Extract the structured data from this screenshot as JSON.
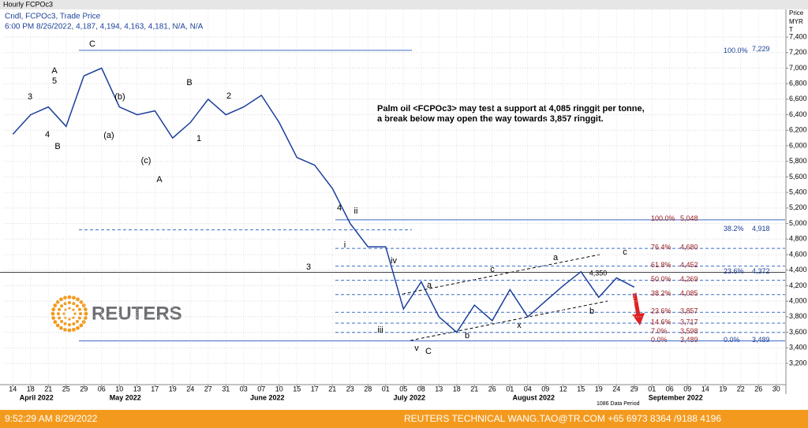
{
  "window_title": "Hourly FCPOc3",
  "chart_data": {
    "type": "line",
    "legend_lines": [
      "Cndl, FCPOc3, Trade Price",
      "6:00 PM 8/26/2022, 4,187, 4,194, 4,163, 4,181, N/A, N/A"
    ],
    "axis_unit_labels": [
      "Price",
      "MYR",
      "T"
    ],
    "categories": [
      "14",
      "18",
      "21",
      "25",
      "29",
      "06",
      "10",
      "13",
      "17",
      "19",
      "24",
      "27",
      "31",
      "03",
      "07",
      "10",
      "15",
      "17",
      "21",
      "23",
      "28",
      "01",
      "05",
      "08",
      "13",
      "18",
      "21",
      "26",
      "01",
      "04",
      "09",
      "12",
      "15",
      "19",
      "24",
      "29",
      "01",
      "06",
      "09",
      "14",
      "19",
      "22",
      "26",
      "30"
    ],
    "months": [
      "April 2022",
      "May 2022",
      "June 2022",
      "July 2022",
      "August 2022",
      "September 2022"
    ],
    "series": [
      {
        "name": "FCPOc3",
        "color": "#1a3f9a",
        "values": [
          6150,
          6400,
          6500,
          6250,
          6900,
          7000,
          6500,
          6400,
          6450,
          6100,
          6300,
          6600,
          6400,
          6500,
          6650,
          6300,
          5850,
          5750,
          5450,
          5000,
          4700,
          4700,
          3900,
          4250,
          3800,
          3600,
          3950,
          3750,
          4150,
          3800,
          4000,
          4200,
          4380,
          4050,
          4300,
          4181,
          null,
          null,
          null,
          null,
          null,
          null,
          null,
          null
        ]
      }
    ],
    "ylim": [
      3200,
      7400
    ],
    "yticks": [
      {
        "value": 3200,
        "label": "3,200"
      },
      {
        "value": 3400,
        "label": "3,400"
      },
      {
        "value": 3600,
        "label": "3,600"
      },
      {
        "value": 3800,
        "label": "3,800"
      },
      {
        "value": 4000,
        "label": "4,000"
      },
      {
        "value": 4200,
        "label": "4,200"
      },
      {
        "value": 4400,
        "label": "4,400"
      },
      {
        "value": 4600,
        "label": "4,600"
      },
      {
        "value": 4800,
        "label": "4,800"
      },
      {
        "value": 5000,
        "label": "5,000"
      },
      {
        "value": 5200,
        "label": "5,200"
      },
      {
        "value": 5400,
        "label": "5,400"
      },
      {
        "value": 5600,
        "label": "5,600"
      },
      {
        "value": 5800,
        "label": "5,800"
      },
      {
        "value": 6000,
        "label": "6,000"
      },
      {
        "value": 6200,
        "label": "6,200"
      },
      {
        "value": 6400,
        "label": "6,400"
      },
      {
        "value": 6600,
        "label": "6,600"
      },
      {
        "value": 6800,
        "label": "6,800"
      },
      {
        "value": 7000,
        "label": "7,000"
      },
      {
        "value": 7200,
        "label": "7,200"
      },
      {
        "value": 7400,
        "label": "7,400"
      }
    ],
    "grid": true,
    "fib_left": [
      {
        "pct": "100.0%",
        "value": 5048,
        "label": "5,048"
      },
      {
        "pct": "76.4%",
        "value": 4680,
        "label": "4,680"
      },
      {
        "pct": "61.8%",
        "value": 4452,
        "label": "4,452"
      },
      {
        "pct": "50.0%",
        "value": 4269,
        "label": "4,269"
      },
      {
        "pct": "38.2%",
        "value": 4085,
        "label": "4,085"
      },
      {
        "pct": "23.6%",
        "value": 3857,
        "label": "3,857"
      },
      {
        "pct": "14.6%",
        "value": 3717,
        "label": "3,717"
      },
      {
        "pct": "7.0%",
        "value": 3598,
        "label": "3,598"
      },
      {
        "pct": "0.0%",
        "value": 3489,
        "label": "3,489"
      }
    ],
    "fib_right": [
      {
        "pct": "100.0%",
        "value": 7229,
        "label": "7,229"
      },
      {
        "pct": "38.2%",
        "value": 4918,
        "label": "4,918"
      },
      {
        "pct": "23.6%",
        "value": 4372,
        "label": "4,372"
      },
      {
        "pct": "0.0%",
        "value": 3489,
        "label": "3,489"
      }
    ],
    "annotation": [
      "Palm oil <FCPOc3> may test a support at 4,085 ringgit per tonne,",
      "a break below may open the way towards 3,857 ringgit."
    ],
    "wave_labels": [
      "C",
      "3",
      "A",
      "5",
      "4",
      "B",
      "(b)",
      "(a)",
      "(c)",
      "A",
      "B",
      "2",
      "1",
      "4",
      "ii",
      "i",
      "3",
      "iv",
      "iii",
      "a",
      "c",
      "a",
      "c",
      "b",
      "x",
      "b",
      "v",
      "C",
      "4,350"
    ],
    "data_period": "1086 Data Period"
  },
  "logo": {
    "text": "REUTERS"
  },
  "footer": {
    "time": "9:52:29 AM 8/29/2022",
    "contact": "REUTERS TECHNICAL  WANG.TAO@TR.COM  +65 6973 8364 /9188 4196"
  }
}
